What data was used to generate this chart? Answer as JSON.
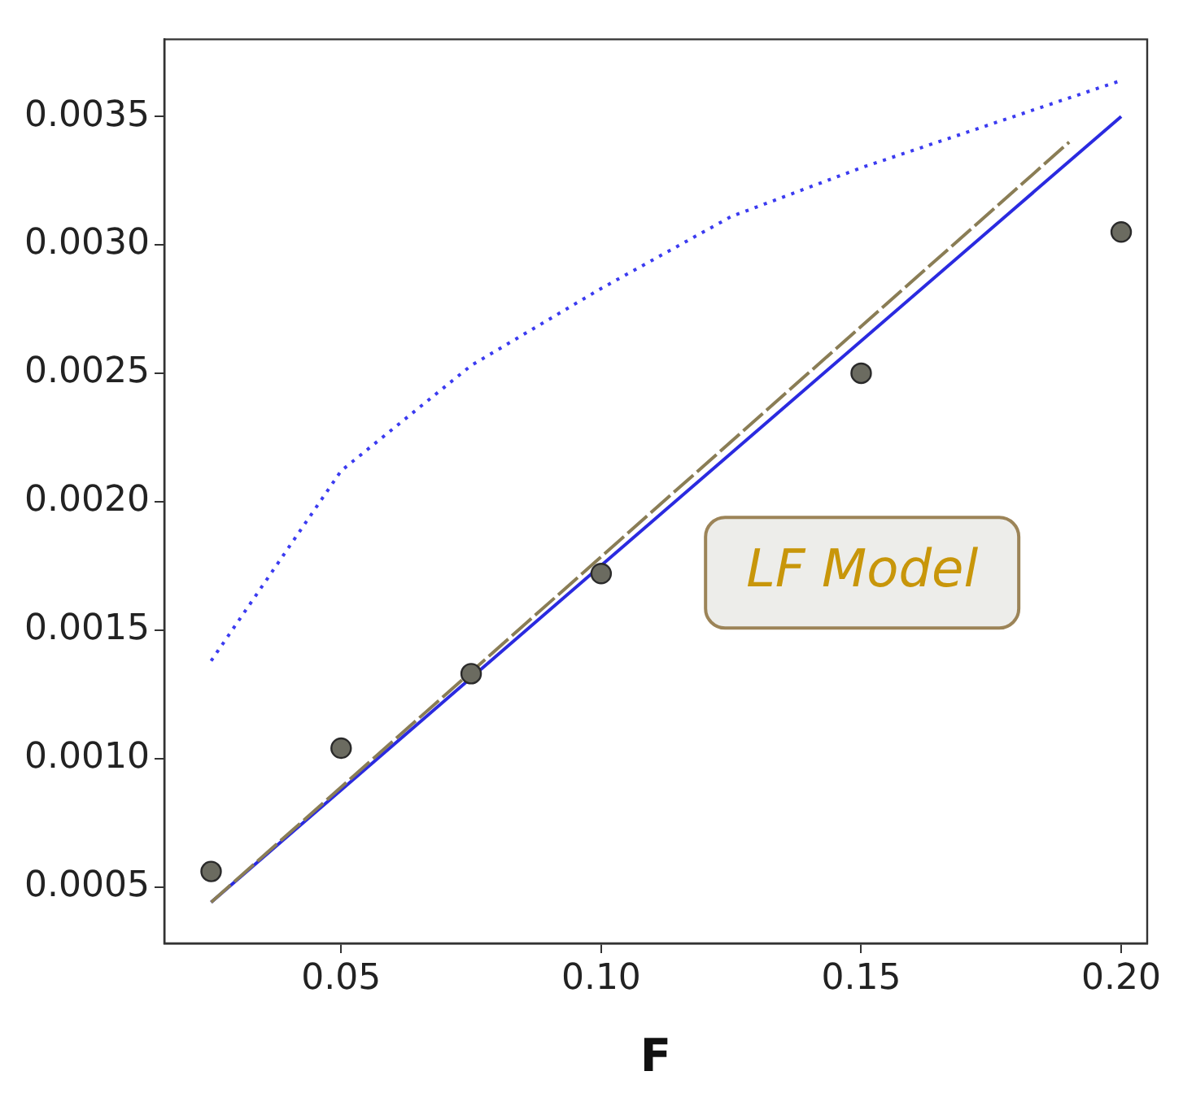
{
  "chart_data": {
    "type": "scatter",
    "xlabel": "F",
    "series": [
      {
        "type": "line",
        "color": "#3b3bf0",
        "line_style": "dotted",
        "marker": "none",
        "x": [
          0.025,
          0.05,
          0.075,
          0.1,
          0.125,
          0.15,
          0.2
        ],
        "values": [
          0.00138,
          0.00212,
          0.00253,
          0.00283,
          0.00311,
          0.0033,
          0.00364
        ]
      },
      {
        "type": "line",
        "color": "#2a2ae0",
        "line_style": "solid",
        "marker": "none",
        "x": [
          0.025,
          0.2
        ],
        "values": [
          0.00044,
          0.0035
        ]
      },
      {
        "type": "line",
        "color": "#8a7d55",
        "line_style": "dashed",
        "marker": "none",
        "x": [
          0.025,
          0.19
        ],
        "values": [
          0.00044,
          0.0034
        ]
      },
      {
        "type": "scatter",
        "color": "#6b6b60",
        "marker": "circle",
        "x": [
          0.025,
          0.05,
          0.075,
          0.1,
          0.15,
          0.2
        ],
        "values": [
          0.00056,
          0.00104,
          0.00133,
          0.00172,
          0.0025,
          0.00305
        ]
      }
    ],
    "xlim": [
      0.016,
      0.205
    ],
    "xticks": [
      0.05,
      {
        "value": 0.1,
        "label": "0.10"
      },
      0.15,
      {
        "value": 0.2,
        "label": "0.20"
      }
    ],
    "ylim": [
      0.00028,
      0.0038
    ],
    "yticks": [
      0.0005,
      {
        "value": 0.001,
        "label": "0.0010"
      },
      {
        "value": 0.0015,
        "label": "0.0015"
      },
      {
        "value": 0.002,
        "label": "0.0020"
      },
      {
        "value": 0.0025,
        "label": "0.0025"
      },
      {
        "value": 0.003,
        "label": "0.0030"
      },
      0.0035
    ],
    "annotations": [
      "LF Model"
    ],
    "grid": false,
    "legend": false
  }
}
